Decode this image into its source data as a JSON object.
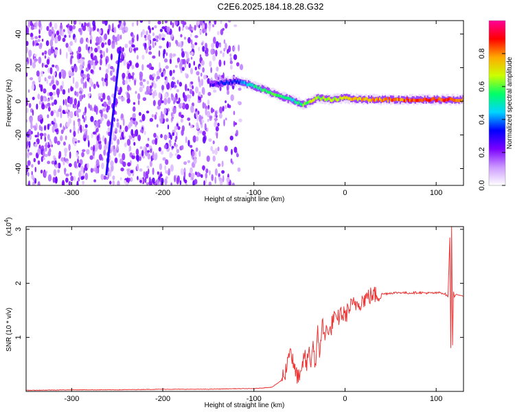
{
  "title": "C2E6.2025.184.18.28.G32",
  "chart_data": [
    {
      "type": "heatmap",
      "title": "C2E6.2025.184.18.28.G32",
      "xlabel": "Height of straight line (km)",
      "ylabel": "Frequency (Hz)",
      "xlim": [
        -350,
        130
      ],
      "ylim": [
        -50,
        48
      ],
      "xticks": [
        -300,
        -200,
        -100,
        0,
        100
      ],
      "yticks": [
        -40,
        -20,
        0,
        20,
        40
      ],
      "colorbar": {
        "label": "Normalized spectral amplitude",
        "range": [
          0,
          1
        ],
        "ticks": [
          "0.0",
          "0.2",
          "0.4",
          "0.6",
          "0.8"
        ],
        "colors": [
          "#ffffff",
          "#cc99ff",
          "#7a00ff",
          "#0000ff",
          "#00d5ff",
          "#00ff66",
          "#ccff00",
          "#ffaa00",
          "#ff0000",
          "#ff0099"
        ]
      },
      "noise_region_x": [
        -350,
        -110
      ],
      "signal_track": {
        "x": [
          -148,
          -135,
          -120,
          -105,
          -90,
          -75,
          -60,
          -45,
          -30,
          -15,
          0,
          20,
          50,
          80,
          110,
          130
        ],
        "y": [
          10,
          11,
          12,
          10,
          7,
          4,
          1,
          -2,
          2,
          1,
          2,
          1,
          1,
          1,
          1,
          1
        ],
        "amplitude": [
          0.25,
          0.3,
          0.35,
          0.45,
          0.55,
          0.55,
          0.5,
          0.6,
          0.65,
          0.65,
          0.7,
          0.75,
          0.8,
          0.85,
          0.85,
          0.8
        ]
      },
      "chirp_line": {
        "x": [
          -262,
          -247
        ],
        "y": [
          -44,
          30
        ]
      }
    },
    {
      "type": "line",
      "xlabel": "Height of straight line (km)",
      "ylabel": "SNR (10 * v/v)",
      "multiplier_label": "(x10",
      "multiplier_exp": "4",
      "xlim": [
        -350,
        130
      ],
      "ylim": [
        0,
        3.05
      ],
      "xticks": [
        -300,
        -200,
        -100,
        0,
        100
      ],
      "yticks": [
        1,
        2,
        3
      ],
      "color": "#ee3333",
      "series": [
        {
          "x": [
            -350,
            -300,
            -250,
            -200,
            -150,
            -120,
            -100,
            -80,
            -70,
            -65,
            -60,
            -58,
            -55,
            -52,
            -50,
            -48,
            -45,
            -42,
            -40,
            -38,
            -35,
            -32,
            -30,
            -28,
            -25,
            -22,
            -20,
            -18,
            -15,
            -12,
            -10,
            -5,
            0,
            5,
            10,
            15,
            20,
            25,
            30,
            40,
            50,
            60,
            70,
            80,
            90,
            100,
            105,
            110,
            113,
            115,
            116,
            117,
            118,
            119,
            120,
            122,
            125,
            130
          ],
          "y": [
            0.02,
            0.03,
            0.03,
            0.04,
            0.04,
            0.05,
            0.05,
            0.08,
            0.2,
            0.4,
            0.85,
            0.6,
            0.35,
            0.3,
            0.2,
            0.28,
            0.7,
            0.45,
            0.8,
            0.5,
            0.9,
            0.4,
            1.1,
            0.7,
            1.3,
            0.9,
            1.35,
            1.0,
            1.2,
            1.4,
            1.25,
            1.45,
            1.4,
            1.55,
            1.6,
            1.65,
            1.7,
            1.75,
            1.78,
            1.8,
            1.82,
            1.83,
            1.82,
            1.83,
            1.82,
            1.82,
            1.83,
            1.8,
            1.75,
            2.85,
            0.8,
            3.05,
            0.85,
            1.85,
            1.75,
            1.8,
            1.78,
            1.76
          ]
        }
      ]
    }
  ]
}
